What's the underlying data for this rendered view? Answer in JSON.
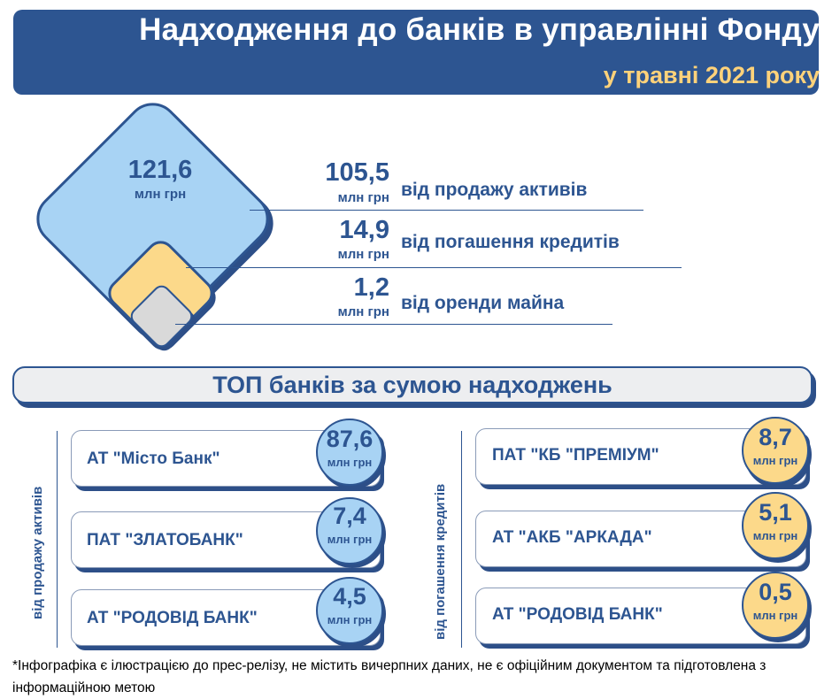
{
  "header": {
    "title": "Надходження до банків в управлінні Фонду",
    "subtitle": "у травні 2021 року"
  },
  "summary": {
    "total": {
      "value": "121,6",
      "unit": "млн грн"
    },
    "sources": [
      {
        "value": "105,5",
        "unit": "млн грн",
        "label": "від продажу активів"
      },
      {
        "value": "14,9",
        "unit": "млн грн",
        "label": "від погашення кредитів"
      },
      {
        "value": "1,2",
        "unit": "млн грн",
        "label": "від оренди майна"
      }
    ]
  },
  "top_section": {
    "title": "ТОП банків за сумою надходжень",
    "left_group": {
      "label": "від продажу активів",
      "items": [
        {
          "bank": "АТ \"Місто Банк\"",
          "value": "87,6",
          "unit": "млн грн"
        },
        {
          "bank": "ПАТ \"ЗЛАТОБАНК\"",
          "value": "7,4",
          "unit": "млн грн"
        },
        {
          "bank": "АТ \"РОДОВІД БАНК\"",
          "value": "4,5",
          "unit": "млн грн"
        }
      ]
    },
    "right_group": {
      "label": "від погашення кредитів",
      "items": [
        {
          "bank": "ПАТ \"КБ \"ПРЕМІУМ\"",
          "value": "8,7",
          "unit": "млн грн"
        },
        {
          "bank": "АТ \"АКБ \"АРКАДА\"",
          "value": "5,1",
          "unit": "млн грн"
        },
        {
          "bank": "АТ \"РОДОВІД БАНК\"",
          "value": "0,5",
          "unit": "млн грн"
        }
      ]
    }
  },
  "colors": {
    "brand_blue": "#2d5591",
    "accent_yellow": "#ffd27a",
    "light_blue": "#a8d3f4",
    "light_yellow": "#fcd98a",
    "gray": "#d9d9d9"
  },
  "footnote": "*Інфографіка є ілюстрацією до прес-релізу, не містить вичерпних даних, не є офіційним документом та підготовлена з інформаційною метою"
}
